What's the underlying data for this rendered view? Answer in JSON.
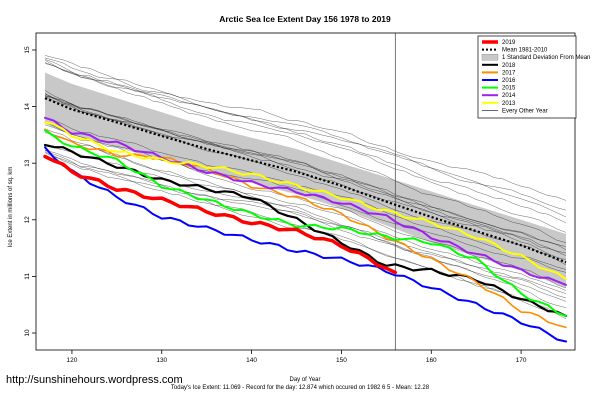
{
  "chart_data": {
    "type": "line",
    "title": "Arctic Sea Ice Extent Day 156 1978 to 2019",
    "xlabel": "Day of Year",
    "ylabel": "Ice Extent in millions of sq. km",
    "xlim": [
      116,
      176
    ],
    "ylim": [
      9.7,
      15.3
    ],
    "xticks": [
      120,
      130,
      140,
      150,
      160,
      170
    ],
    "yticks": [
      10,
      11,
      12,
      13,
      14,
      15
    ],
    "marker_day": 156,
    "grid": false,
    "legend_position": "top-right",
    "legend": [
      {
        "label": "2019",
        "color": "#ff0000",
        "style": "thick"
      },
      {
        "label": "Mean 1981-2010",
        "color": "#000000",
        "style": "dotted"
      },
      {
        "label": "1 Standard Deviation From Mean",
        "color": "#bdbdbd",
        "style": "band"
      },
      {
        "label": "2018",
        "color": "#000000",
        "style": "solid"
      },
      {
        "label": "2017",
        "color": "#ff8c00",
        "style": "solid"
      },
      {
        "label": "2016",
        "color": "#0000ff",
        "style": "solid"
      },
      {
        "label": "2015",
        "color": "#00ff00",
        "style": "solid"
      },
      {
        "label": "2014",
        "color": "#a020f0",
        "style": "solid"
      },
      {
        "label": "2013",
        "color": "#ffff00",
        "style": "solid"
      },
      {
        "label": "Every Other Year",
        "color": "#000000",
        "style": "thin"
      }
    ],
    "mean": {
      "x": [
        117,
        120,
        125,
        130,
        135,
        140,
        145,
        150,
        155,
        160,
        165,
        170,
        175
      ],
      "values": [
        14.15,
        13.95,
        13.72,
        13.48,
        13.25,
        13.05,
        12.85,
        12.6,
        12.32,
        12.05,
        11.8,
        11.55,
        11.25
      ]
    },
    "std_band": {
      "x": [
        117,
        120,
        125,
        130,
        135,
        140,
        145,
        150,
        155,
        160,
        165,
        170,
        175
      ],
      "upper": [
        14.6,
        14.4,
        14.15,
        13.9,
        13.65,
        13.45,
        13.25,
        13.0,
        12.75,
        12.5,
        12.25,
        12.0,
        11.75
      ],
      "lower": [
        13.7,
        13.5,
        13.28,
        13.05,
        12.85,
        12.65,
        12.45,
        12.2,
        11.9,
        11.6,
        11.35,
        11.1,
        10.8
      ]
    },
    "series": [
      {
        "name": "2018",
        "color": "#000000",
        "width": 2.2,
        "x": [
          117,
          120,
          125,
          130,
          135,
          140,
          145,
          150,
          155,
          160,
          165,
          170,
          175
        ],
        "values": [
          13.35,
          13.2,
          12.95,
          12.7,
          12.55,
          12.4,
          12.0,
          11.6,
          11.2,
          11.1,
          10.95,
          10.6,
          10.3
        ]
      },
      {
        "name": "2017",
        "color": "#ff8c00",
        "width": 1.6,
        "x": [
          117,
          120,
          125,
          130,
          135,
          140,
          145,
          150,
          155,
          160,
          165,
          170,
          175
        ],
        "values": [
          13.6,
          13.35,
          13.15,
          13.1,
          12.9,
          12.6,
          12.4,
          12.1,
          11.7,
          11.3,
          10.9,
          10.4,
          10.1
        ]
      },
      {
        "name": "2016",
        "color": "#0000ff",
        "width": 2.0,
        "x": [
          117,
          120,
          125,
          130,
          135,
          140,
          145,
          150,
          155,
          160,
          165,
          170,
          175
        ],
        "values": [
          13.25,
          12.85,
          12.4,
          12.05,
          11.85,
          11.65,
          11.45,
          11.3,
          11.1,
          10.8,
          10.5,
          10.2,
          9.85
        ]
      },
      {
        "name": "2015",
        "color": "#00ff00",
        "width": 2.0,
        "x": [
          117,
          120,
          125,
          130,
          135,
          140,
          145,
          150,
          155,
          160,
          165,
          170,
          175
        ],
        "values": [
          13.55,
          13.3,
          13.05,
          12.6,
          12.35,
          12.1,
          11.9,
          11.85,
          11.7,
          11.6,
          11.3,
          10.7,
          10.3
        ]
      },
      {
        "name": "2014",
        "color": "#a020f0",
        "width": 2.0,
        "x": [
          117,
          120,
          125,
          130,
          135,
          140,
          145,
          150,
          155,
          160,
          165,
          170,
          175
        ],
        "values": [
          13.8,
          13.55,
          13.35,
          13.1,
          12.85,
          12.65,
          12.5,
          12.3,
          12.05,
          11.7,
          11.4,
          11.1,
          10.85
        ]
      },
      {
        "name": "2013",
        "color": "#ffff00",
        "width": 2.0,
        "x": [
          117,
          120,
          125,
          130,
          135,
          140,
          145,
          150,
          155,
          160,
          165,
          170,
          175
        ],
        "values": [
          13.75,
          13.5,
          13.2,
          13.05,
          12.95,
          12.8,
          12.6,
          12.4,
          12.15,
          11.95,
          11.7,
          11.35,
          10.95
        ]
      },
      {
        "name": "2019",
        "color": "#ff0000",
        "width": 3.5,
        "x": [
          117,
          120,
          125,
          130,
          135,
          140,
          145,
          150,
          155,
          156
        ],
        "values": [
          13.15,
          12.85,
          12.55,
          12.35,
          12.15,
          11.95,
          11.8,
          11.55,
          11.15,
          11.069
        ]
      }
    ]
  },
  "footer": "Today's Ice Extent: 11.069 - Record for the day: 12.874 which occured on 1982 6 5 - Mean: 12.28",
  "url": "http://sunshinehours.wordpress.com"
}
